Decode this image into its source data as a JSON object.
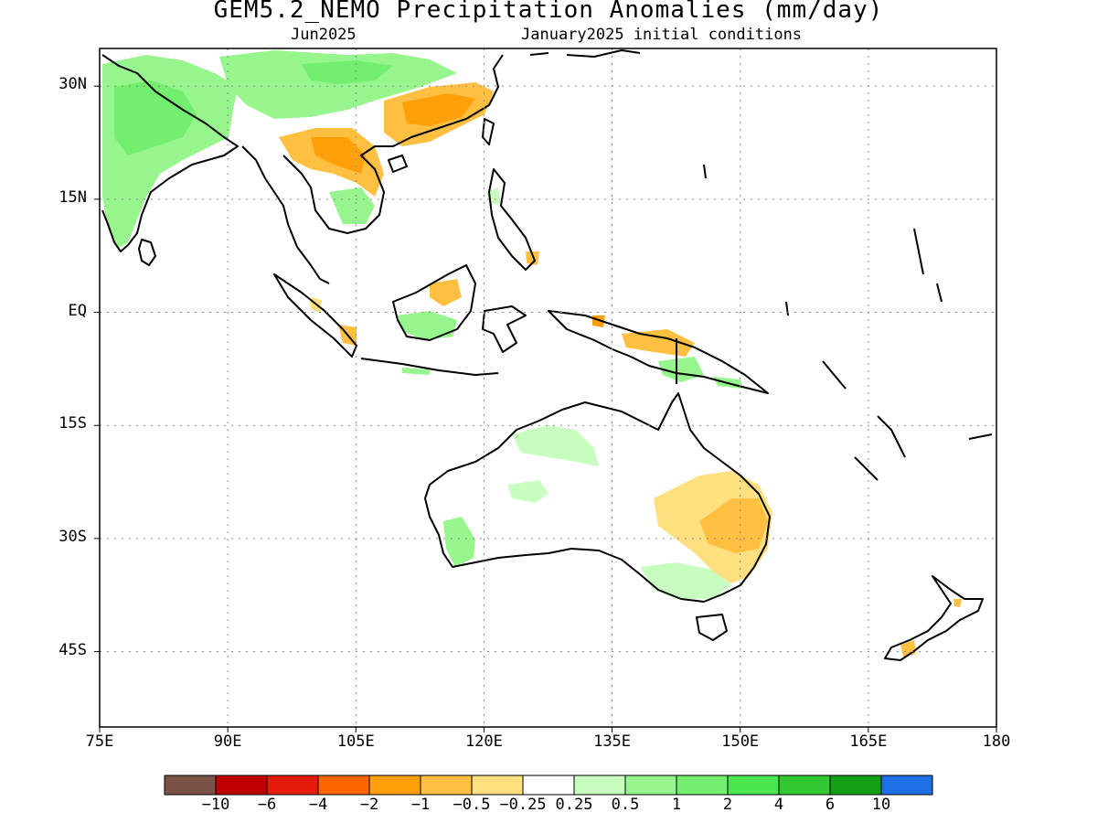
{
  "title": "GEM5.2_NEMO Precipitation Anomalies (mm/day)",
  "subtitle_left": "Jun2025",
  "subtitle_right": "January2025 initial conditions",
  "map": {
    "lon_range": [
      75,
      180
    ],
    "lat_range": [
      -55,
      35
    ],
    "lat_labels": [
      "30N",
      "15N",
      "EQ",
      "15S",
      "30S",
      "45S"
    ],
    "lon_labels": [
      "75E",
      "90E",
      "105E",
      "120E",
      "135E",
      "150E",
      "165E",
      "180"
    ],
    "grid": true
  },
  "colorbar": {
    "colors": [
      "#7a5246",
      "#c00000",
      "#e41a0a",
      "#ff6600",
      "#ff9f0a",
      "#ffbf40",
      "#ffe080",
      "#ffffff",
      "#c8ffc0",
      "#96f58c",
      "#73ee6e",
      "#4ce650",
      "#32c832",
      "#14a014",
      "#1e6ee6"
    ],
    "labels": [
      "−10",
      "−6",
      "−4",
      "−2",
      "−1",
      "−0.5",
      "−0.25",
      "0.25",
      "0.5",
      "1",
      "2",
      "4",
      "6",
      "10"
    ]
  }
}
